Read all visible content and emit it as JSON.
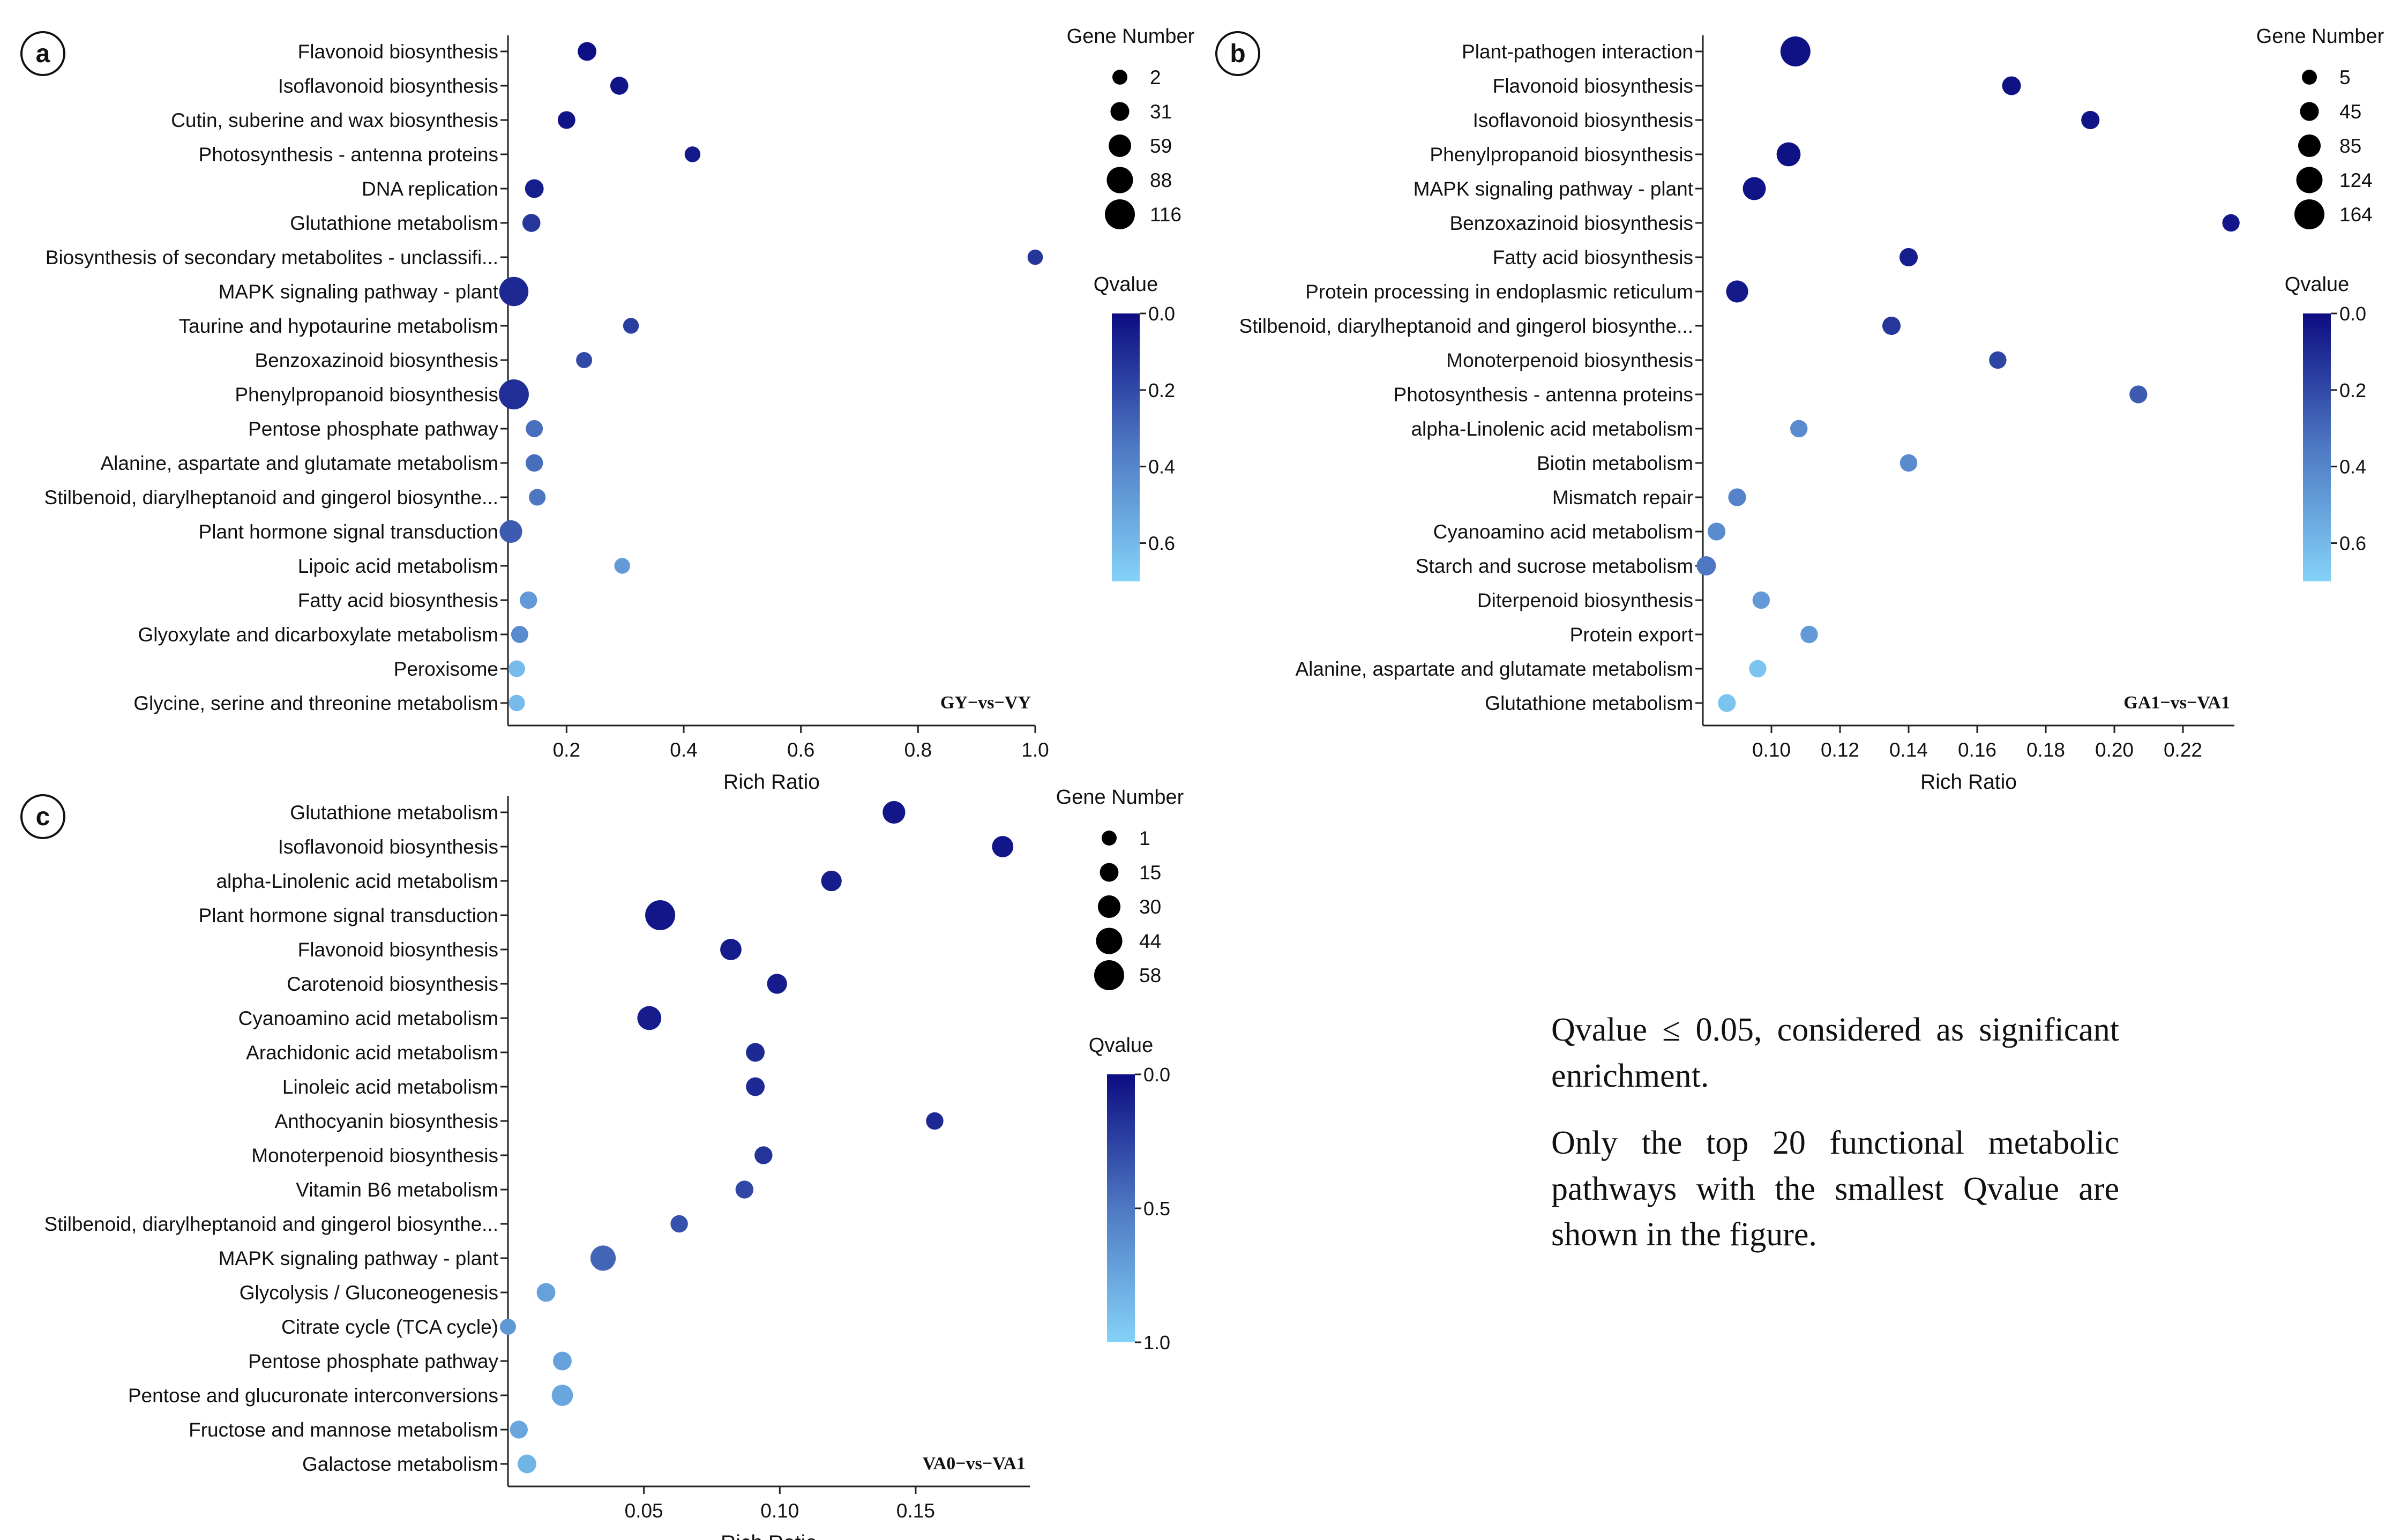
{
  "note": {
    "line1": "Qvalue ≤ 0.05, considered as significant enrichment.",
    "line2": "Only the top 20 functional metabolic pathways with the smallest Qvalue are shown in the figure."
  },
  "chart_data": [
    {
      "type": "scatter",
      "panel": "a",
      "comparison": "GY−vs−VY",
      "xlabel": "Rich Ratio",
      "ylabel": "",
      "xlim": [
        0.1,
        1.0
      ],
      "xticks": [
        0.2,
        0.4,
        0.6,
        0.8,
        1.0
      ],
      "tick_labels": [
        "0.2",
        "0.4",
        "0.6",
        "0.8",
        "1.0"
      ],
      "categories": [
        "Flavonoid biosynthesis",
        "Isoflavonoid biosynthesis",
        "Cutin, suberine and wax biosynthesis",
        "Photosynthesis - antenna proteins",
        "DNA replication",
        "Glutathione metabolism",
        "Biosynthesis of secondary metabolites - unclassifi...",
        "MAPK signaling pathway - plant",
        "Taurine and hypotaurine metabolism",
        "Benzoxazinoid biosynthesis",
        "Phenylpropanoid biosynthesis",
        "Pentose phosphate pathway",
        "Alanine, aspartate and glutamate metabolism",
        "Stilbenoid, diarylheptanoid and gingerol biosynthe...",
        "Plant hormone signal transduction",
        "Lipoic acid metabolism",
        "Fatty acid biosynthesis",
        "Glyoxylate and dicarboxylate metabolism",
        "Peroxisome",
        "Glycine, serine and threonine metabolism"
      ],
      "rich_ratio": [
        0.235,
        0.29,
        0.2,
        0.415,
        0.145,
        0.14,
        1.0,
        0.11,
        0.31,
        0.23,
        0.11,
        0.145,
        0.145,
        0.15,
        0.105,
        0.295,
        0.135,
        0.12,
        0.115,
        0.115
      ],
      "gene_number": [
        30,
        25,
        22,
        8,
        30,
        25,
        5,
        110,
        8,
        10,
        116,
        18,
        20,
        15,
        60,
        8,
        20,
        18,
        15,
        12
      ],
      "qvalue": [
        0.01,
        0.03,
        0.03,
        0.05,
        0.06,
        0.15,
        0.15,
        0.1,
        0.18,
        0.22,
        0.12,
        0.35,
        0.35,
        0.38,
        0.28,
        0.5,
        0.5,
        0.45,
        0.62,
        0.62
      ],
      "legend_size": {
        "title": "Gene Number",
        "values": [
          2,
          31,
          59,
          88,
          116
        ],
        "labels": [
          "2",
          "31",
          "59",
          "88",
          "116"
        ]
      },
      "legend_color": {
        "title": "Qvalue",
        "range": [
          0.0,
          0.7
        ],
        "ticks": [
          0.0,
          0.2,
          0.4,
          0.6
        ],
        "labels": [
          "0.0",
          "0.2",
          "0.4",
          "0.6"
        ],
        "colors": [
          "#0c0c82",
          "#84d2f8"
        ]
      }
    },
    {
      "type": "scatter",
      "panel": "b",
      "comparison": "GA1−vs−VA1",
      "xlabel": "Rich Ratio",
      "ylabel": "",
      "xlim": [
        0.08,
        0.235
      ],
      "xticks": [
        0.1,
        0.12,
        0.14,
        0.16,
        0.18,
        0.2,
        0.22
      ],
      "tick_labels": [
        "0.10",
        "0.12",
        "0.14",
        "0.16",
        "0.18",
        "0.20",
        "0.22"
      ],
      "categories": [
        "Plant-pathogen interaction",
        "Flavonoid biosynthesis",
        "Isoflavonoid biosynthesis",
        "Phenylpropanoid biosynthesis",
        "MAPK signaling pathway - plant",
        "Benzoxazinoid biosynthesis",
        "Fatty acid biosynthesis",
        "Protein processing in endoplasmic reticulum",
        "Stilbenoid, diarylheptanoid and gingerol biosynthe...",
        "Monoterpenoid biosynthesis",
        "Photosynthesis - antenna proteins",
        "alpha-Linolenic acid metabolism",
        "Biotin metabolism",
        "Mismatch repair",
        "Cyanoamino acid metabolism",
        "Starch and sucrose metabolism",
        "Diterpenoid biosynthesis",
        "Protein export",
        "Alanine, aspartate and glutamate metabolism",
        "Glutathione metabolism"
      ],
      "rich_ratio": [
        0.107,
        0.17,
        0.193,
        0.105,
        0.095,
        0.234,
        0.14,
        0.09,
        0.135,
        0.166,
        0.207,
        0.108,
        0.14,
        0.09,
        0.084,
        0.081,
        0.097,
        0.111,
        0.096,
        0.087
      ],
      "gene_number": [
        164,
        45,
        40,
        100,
        90,
        30,
        40,
        80,
        40,
        30,
        35,
        30,
        30,
        35,
        35,
        50,
        30,
        30,
        30,
        35
      ],
      "qvalue": [
        0.02,
        0.02,
        0.03,
        0.02,
        0.03,
        0.04,
        0.06,
        0.05,
        0.15,
        0.2,
        0.28,
        0.45,
        0.45,
        0.42,
        0.45,
        0.38,
        0.5,
        0.5,
        0.65,
        0.65
      ],
      "legend_size": {
        "title": "Gene Number",
        "values": [
          5,
          45,
          85,
          124,
          164
        ],
        "labels": [
          "5",
          "45",
          "85",
          "124",
          "164"
        ]
      },
      "legend_color": {
        "title": "Qvalue",
        "range": [
          0.0,
          0.7
        ],
        "ticks": [
          0.0,
          0.2,
          0.4,
          0.6
        ],
        "labels": [
          "0.0",
          "0.2",
          "0.4",
          "0.6"
        ],
        "colors": [
          "#0c0c82",
          "#84d2f8"
        ]
      }
    },
    {
      "type": "scatter",
      "panel": "c",
      "comparison": "VA0−vs−VA1",
      "xlabel": "Rich Ratio",
      "ylabel": "",
      "xlim": [
        0.0,
        0.192
      ],
      "xticks": [
        0.05,
        0.1,
        0.15
      ],
      "tick_labels": [
        "0.05",
        "0.10",
        "0.15"
      ],
      "categories": [
        "Glutathione metabolism",
        "Isoflavonoid biosynthesis",
        "alpha-Linolenic acid metabolism",
        "Plant hormone signal transduction",
        "Flavonoid biosynthesis",
        "Carotenoid biosynthesis",
        "Cyanoamino acid metabolism",
        "Arachidonic acid metabolism",
        "Linoleic acid metabolism",
        "Anthocyanin biosynthesis",
        "Monoterpenoid biosynthesis",
        "Vitamin B6 metabolism",
        "Stilbenoid, diarylheptanoid and gingerol biosynthe...",
        "MAPK signaling pathway - plant",
        "Glycolysis / Gluconeogenesis",
        "Citrate cycle (TCA cycle)",
        "Pentose phosphate pathway",
        "Pentose and glucuronate interconversions",
        "Fructose and mannose metabolism",
        "Galactose metabolism"
      ],
      "rich_ratio": [
        0.142,
        0.182,
        0.119,
        0.056,
        0.082,
        0.099,
        0.052,
        0.091,
        0.091,
        0.157,
        0.094,
        0.087,
        0.063,
        0.035,
        0.014,
        0.0,
        0.02,
        0.02,
        0.004,
        0.007
      ],
      "gene_number": [
        30,
        25,
        22,
        58,
        25,
        20,
        35,
        15,
        15,
        10,
        12,
        12,
        10,
        40,
        15,
        5,
        15,
        25,
        12,
        15
      ],
      "qvalue": [
        0.05,
        0.05,
        0.08,
        0.05,
        0.08,
        0.08,
        0.08,
        0.15,
        0.15,
        0.15,
        0.2,
        0.3,
        0.35,
        0.45,
        0.75,
        0.7,
        0.75,
        0.78,
        0.78,
        0.85
      ],
      "legend_size": {
        "title": "Gene Number",
        "values": [
          1,
          15,
          30,
          44,
          58
        ],
        "labels": [
          "1",
          "15",
          "30",
          "44",
          "58"
        ]
      },
      "legend_color": {
        "title": "Qvalue",
        "range": [
          0.0,
          1.0
        ],
        "ticks": [
          0.0,
          0.5,
          1.0
        ],
        "labels": [
          "0.0",
          "0.5",
          "1.0"
        ],
        "colors": [
          "#0c0c82",
          "#84d2f8"
        ]
      }
    }
  ]
}
